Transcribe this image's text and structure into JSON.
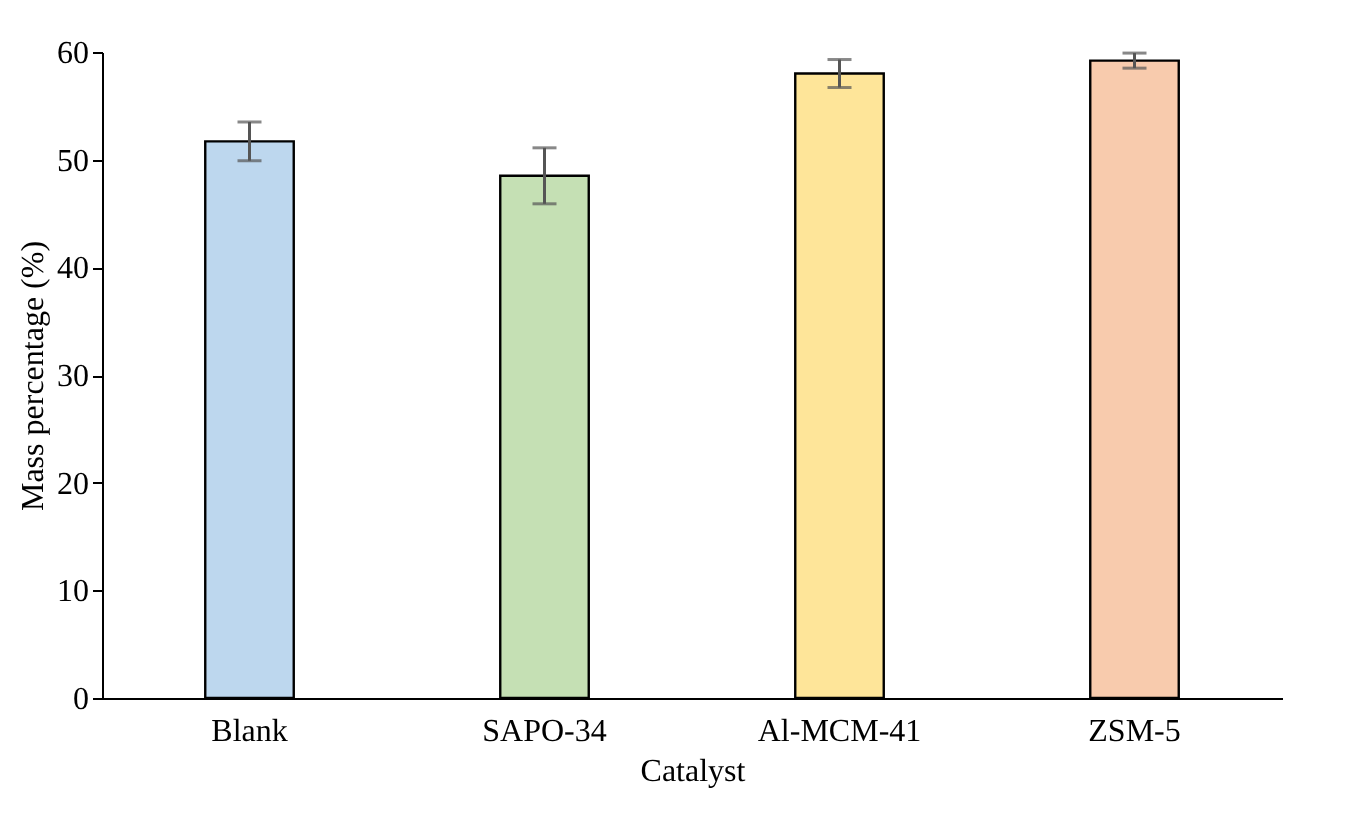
{
  "chart_data": {
    "type": "bar",
    "xlabel": "Catalyst",
    "ylabel": "Mass percentage (%)",
    "categories": [
      "Blank",
      "SAPO-34",
      "Al-MCM-41",
      "ZSM-5"
    ],
    "values": [
      51.7,
      48.5,
      58.0,
      59.2
    ],
    "errors": [
      1.8,
      2.6,
      1.3,
      0.7
    ],
    "colors": [
      "#bdd7ee",
      "#c5e0b4",
      "#fee599",
      "#f8cbad"
    ],
    "ylim": [
      0,
      60
    ],
    "yticks": [
      0,
      10,
      20,
      30,
      40,
      50,
      60
    ],
    "grid": false,
    "legend": false
  }
}
